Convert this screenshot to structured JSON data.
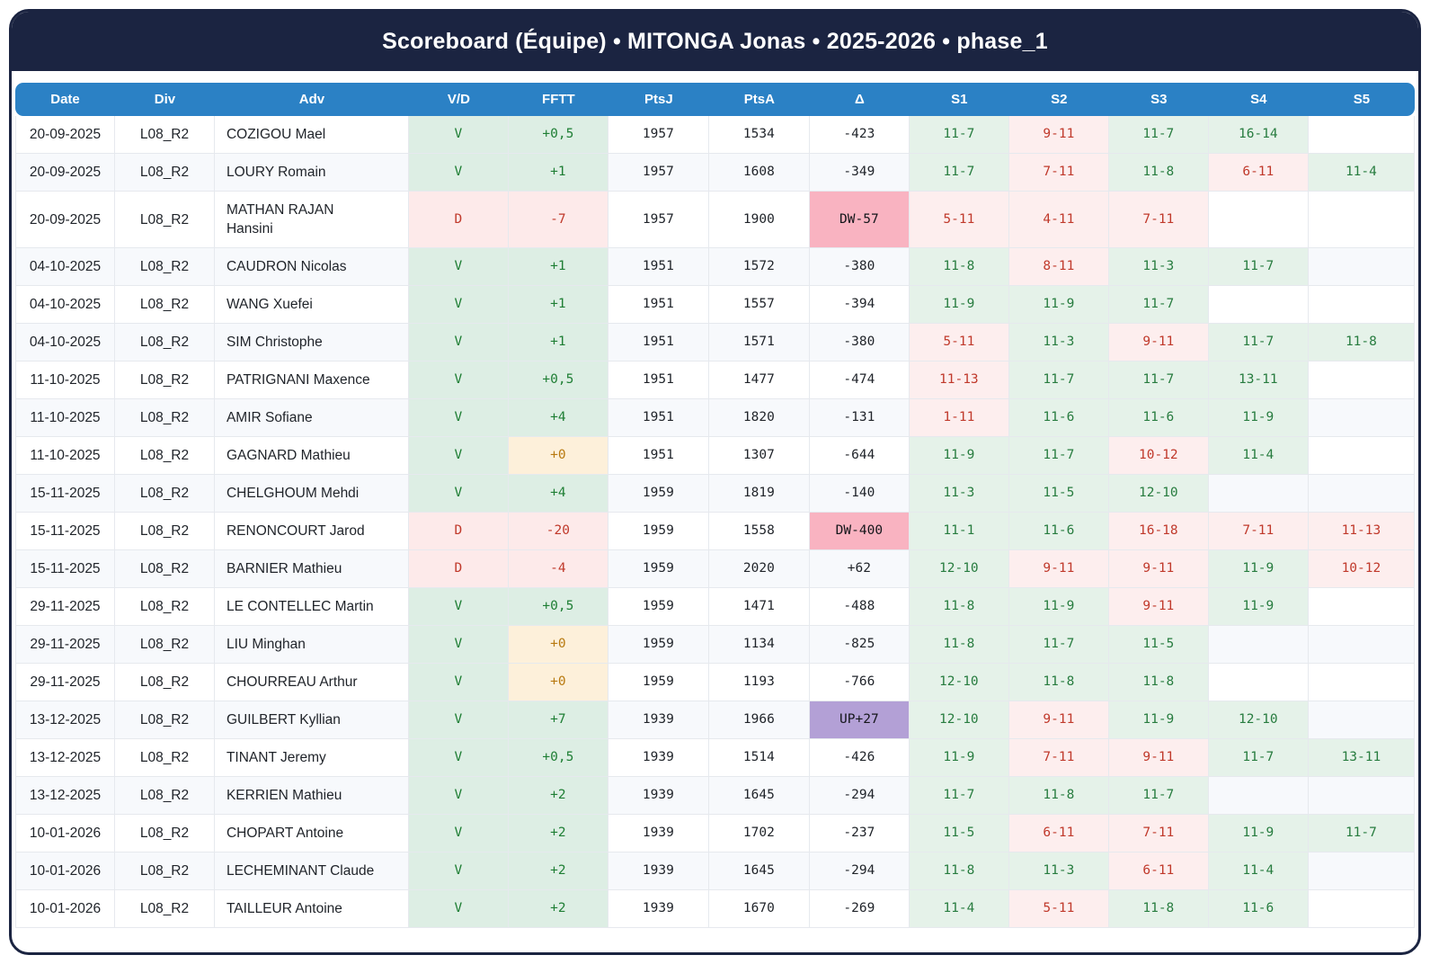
{
  "title": "Scoreboard (Équipe) • MITONGA Jonas • 2025-2026 • phase_1",
  "colors": {
    "frame_navy": "#1b2441",
    "header_blue": "#2b81c5",
    "win_bg": "#ddeee4",
    "win_text": "#1e7e34",
    "loss_bg": "#fdeaea",
    "loss_text": "#c0392b",
    "zero_bg": "#fdf0da",
    "zero_text": "#b8790f",
    "set_win_bg": "#e5f2e9",
    "set_win_text": "#277c3f",
    "set_loss_bg": "#fdeeee",
    "delta_down_bg": "#f9b3c1",
    "delta_up_bg": "#b3a0d6"
  },
  "table": {
    "columns": [
      "Date",
      "Div",
      "Adv",
      "V/D",
      "FFTT",
      "PtsJ",
      "PtsA",
      "Δ",
      "S1",
      "S2",
      "S3",
      "S4",
      "S5"
    ],
    "rows": [
      {
        "date": "20-09-2025",
        "div": "L08_R2",
        "adv": "COZIGOU Mael",
        "vd": "V",
        "res": "win",
        "fftt": "+0,5",
        "fs": "win",
        "ptsj": "1957",
        "ptsa": "1534",
        "delta": "-423",
        "ds": "normal",
        "sets": [
          {
            "s": "11-7",
            "r": "w"
          },
          {
            "s": "9-11",
            "r": "l"
          },
          {
            "s": "11-7",
            "r": "w"
          },
          {
            "s": "16-14",
            "r": "w"
          },
          null
        ]
      },
      {
        "date": "20-09-2025",
        "div": "L08_R2",
        "adv": "LOURY Romain",
        "vd": "V",
        "res": "win",
        "fftt": "+1",
        "fs": "win",
        "ptsj": "1957",
        "ptsa": "1608",
        "delta": "-349",
        "ds": "normal",
        "sets": [
          {
            "s": "11-7",
            "r": "w"
          },
          {
            "s": "7-11",
            "r": "l"
          },
          {
            "s": "11-8",
            "r": "w"
          },
          {
            "s": "6-11",
            "r": "l"
          },
          {
            "s": "11-4",
            "r": "w"
          }
        ]
      },
      {
        "date": "20-09-2025",
        "div": "L08_R2",
        "adv": "MATHAN RAJAN\nHansini",
        "vd": "D",
        "res": "loss",
        "fftt": "-7",
        "fs": "loss",
        "ptsj": "1957",
        "ptsa": "1900",
        "delta": "DW-57",
        "ds": "down",
        "sets": [
          {
            "s": "5-11",
            "r": "l"
          },
          {
            "s": "4-11",
            "r": "l"
          },
          {
            "s": "7-11",
            "r": "l"
          },
          null,
          null
        ]
      },
      {
        "date": "04-10-2025",
        "div": "L08_R2",
        "adv": "CAUDRON Nicolas",
        "vd": "V",
        "res": "win",
        "fftt": "+1",
        "fs": "win",
        "ptsj": "1951",
        "ptsa": "1572",
        "delta": "-380",
        "ds": "normal",
        "sets": [
          {
            "s": "11-8",
            "r": "w"
          },
          {
            "s": "8-11",
            "r": "l"
          },
          {
            "s": "11-3",
            "r": "w"
          },
          {
            "s": "11-7",
            "r": "w"
          },
          null
        ]
      },
      {
        "date": "04-10-2025",
        "div": "L08_R2",
        "adv": "WANG Xuefei",
        "vd": "V",
        "res": "win",
        "fftt": "+1",
        "fs": "win",
        "ptsj": "1951",
        "ptsa": "1557",
        "delta": "-394",
        "ds": "normal",
        "sets": [
          {
            "s": "11-9",
            "r": "w"
          },
          {
            "s": "11-9",
            "r": "w"
          },
          {
            "s": "11-7",
            "r": "w"
          },
          null,
          null
        ]
      },
      {
        "date": "04-10-2025",
        "div": "L08_R2",
        "adv": "SIM Christophe",
        "vd": "V",
        "res": "win",
        "fftt": "+1",
        "fs": "win",
        "ptsj": "1951",
        "ptsa": "1571",
        "delta": "-380",
        "ds": "normal",
        "sets": [
          {
            "s": "5-11",
            "r": "l"
          },
          {
            "s": "11-3",
            "r": "w"
          },
          {
            "s": "9-11",
            "r": "l"
          },
          {
            "s": "11-7",
            "r": "w"
          },
          {
            "s": "11-8",
            "r": "w"
          }
        ]
      },
      {
        "date": "11-10-2025",
        "div": "L08_R2",
        "adv": "PATRIGNANI Maxence",
        "vd": "V",
        "res": "win",
        "fftt": "+0,5",
        "fs": "win",
        "ptsj": "1951",
        "ptsa": "1477",
        "delta": "-474",
        "ds": "normal",
        "sets": [
          {
            "s": "11-13",
            "r": "l"
          },
          {
            "s": "11-7",
            "r": "w"
          },
          {
            "s": "11-7",
            "r": "w"
          },
          {
            "s": "13-11",
            "r": "w"
          },
          null
        ]
      },
      {
        "date": "11-10-2025",
        "div": "L08_R2",
        "adv": "AMIR Sofiane",
        "vd": "V",
        "res": "win",
        "fftt": "+4",
        "fs": "win",
        "ptsj": "1951",
        "ptsa": "1820",
        "delta": "-131",
        "ds": "normal",
        "sets": [
          {
            "s": "1-11",
            "r": "l"
          },
          {
            "s": "11-6",
            "r": "w"
          },
          {
            "s": "11-6",
            "r": "w"
          },
          {
            "s": "11-9",
            "r": "w"
          },
          null
        ]
      },
      {
        "date": "11-10-2025",
        "div": "L08_R2",
        "adv": "GAGNARD Mathieu",
        "vd": "V",
        "res": "win",
        "fftt": "+0",
        "fs": "zero",
        "ptsj": "1951",
        "ptsa": "1307",
        "delta": "-644",
        "ds": "normal",
        "sets": [
          {
            "s": "11-9",
            "r": "w"
          },
          {
            "s": "11-7",
            "r": "w"
          },
          {
            "s": "10-12",
            "r": "l"
          },
          {
            "s": "11-4",
            "r": "w"
          },
          null
        ]
      },
      {
        "date": "15-11-2025",
        "div": "L08_R2",
        "adv": "CHELGHOUM Mehdi",
        "vd": "V",
        "res": "win",
        "fftt": "+4",
        "fs": "win",
        "ptsj": "1959",
        "ptsa": "1819",
        "delta": "-140",
        "ds": "normal",
        "sets": [
          {
            "s": "11-3",
            "r": "w"
          },
          {
            "s": "11-5",
            "r": "w"
          },
          {
            "s": "12-10",
            "r": "w"
          },
          null,
          null
        ]
      },
      {
        "date": "15-11-2025",
        "div": "L08_R2",
        "adv": "RENONCOURT Jarod",
        "vd": "D",
        "res": "loss",
        "fftt": "-20",
        "fs": "loss",
        "ptsj": "1959",
        "ptsa": "1558",
        "delta": "DW-400",
        "ds": "down",
        "sets": [
          {
            "s": "11-1",
            "r": "w"
          },
          {
            "s": "11-6",
            "r": "w"
          },
          {
            "s": "16-18",
            "r": "l"
          },
          {
            "s": "7-11",
            "r": "l"
          },
          {
            "s": "11-13",
            "r": "l"
          }
        ]
      },
      {
        "date": "15-11-2025",
        "div": "L08_R2",
        "adv": "BARNIER Mathieu",
        "vd": "D",
        "res": "loss",
        "fftt": "-4",
        "fs": "loss",
        "ptsj": "1959",
        "ptsa": "2020",
        "delta": "+62",
        "ds": "normal",
        "sets": [
          {
            "s": "12-10",
            "r": "w"
          },
          {
            "s": "9-11",
            "r": "l"
          },
          {
            "s": "9-11",
            "r": "l"
          },
          {
            "s": "11-9",
            "r": "w"
          },
          {
            "s": "10-12",
            "r": "l"
          }
        ]
      },
      {
        "date": "29-11-2025",
        "div": "L08_R2",
        "adv": "LE CONTELLEC Martin",
        "vd": "V",
        "res": "win",
        "fftt": "+0,5",
        "fs": "win",
        "ptsj": "1959",
        "ptsa": "1471",
        "delta": "-488",
        "ds": "normal",
        "sets": [
          {
            "s": "11-8",
            "r": "w"
          },
          {
            "s": "11-9",
            "r": "w"
          },
          {
            "s": "9-11",
            "r": "l"
          },
          {
            "s": "11-9",
            "r": "w"
          },
          null
        ]
      },
      {
        "date": "29-11-2025",
        "div": "L08_R2",
        "adv": "LIU Minghan",
        "vd": "V",
        "res": "win",
        "fftt": "+0",
        "fs": "zero",
        "ptsj": "1959",
        "ptsa": "1134",
        "delta": "-825",
        "ds": "normal",
        "sets": [
          {
            "s": "11-8",
            "r": "w"
          },
          {
            "s": "11-7",
            "r": "w"
          },
          {
            "s": "11-5",
            "r": "w"
          },
          null,
          null
        ]
      },
      {
        "date": "29-11-2025",
        "div": "L08_R2",
        "adv": "CHOURREAU Arthur",
        "vd": "V",
        "res": "win",
        "fftt": "+0",
        "fs": "zero",
        "ptsj": "1959",
        "ptsa": "1193",
        "delta": "-766",
        "ds": "normal",
        "sets": [
          {
            "s": "12-10",
            "r": "w"
          },
          {
            "s": "11-8",
            "r": "w"
          },
          {
            "s": "11-8",
            "r": "w"
          },
          null,
          null
        ]
      },
      {
        "date": "13-12-2025",
        "div": "L08_R2",
        "adv": "GUILBERT Kyllian",
        "vd": "V",
        "res": "win",
        "fftt": "+7",
        "fs": "win",
        "ptsj": "1939",
        "ptsa": "1966",
        "delta": "UP+27",
        "ds": "up",
        "sets": [
          {
            "s": "12-10",
            "r": "w"
          },
          {
            "s": "9-11",
            "r": "l"
          },
          {
            "s": "11-9",
            "r": "w"
          },
          {
            "s": "12-10",
            "r": "w"
          },
          null
        ]
      },
      {
        "date": "13-12-2025",
        "div": "L08_R2",
        "adv": "TINANT Jeremy",
        "vd": "V",
        "res": "win",
        "fftt": "+0,5",
        "fs": "win",
        "ptsj": "1939",
        "ptsa": "1514",
        "delta": "-426",
        "ds": "normal",
        "sets": [
          {
            "s": "11-9",
            "r": "w"
          },
          {
            "s": "7-11",
            "r": "l"
          },
          {
            "s": "9-11",
            "r": "l"
          },
          {
            "s": "11-7",
            "r": "w"
          },
          {
            "s": "13-11",
            "r": "w"
          }
        ]
      },
      {
        "date": "13-12-2025",
        "div": "L08_R2",
        "adv": "KERRIEN Mathieu",
        "vd": "V",
        "res": "win",
        "fftt": "+2",
        "fs": "win",
        "ptsj": "1939",
        "ptsa": "1645",
        "delta": "-294",
        "ds": "normal",
        "sets": [
          {
            "s": "11-7",
            "r": "w"
          },
          {
            "s": "11-8",
            "r": "w"
          },
          {
            "s": "11-7",
            "r": "w"
          },
          null,
          null
        ]
      },
      {
        "date": "10-01-2026",
        "div": "L08_R2",
        "adv": "CHOPART Antoine",
        "vd": "V",
        "res": "win",
        "fftt": "+2",
        "fs": "win",
        "ptsj": "1939",
        "ptsa": "1702",
        "delta": "-237",
        "ds": "normal",
        "sets": [
          {
            "s": "11-5",
            "r": "w"
          },
          {
            "s": "6-11",
            "r": "l"
          },
          {
            "s": "7-11",
            "r": "l"
          },
          {
            "s": "11-9",
            "r": "w"
          },
          {
            "s": "11-7",
            "r": "w"
          }
        ]
      },
      {
        "date": "10-01-2026",
        "div": "L08_R2",
        "adv": "LECHEMINANT Claude",
        "vd": "V",
        "res": "win",
        "fftt": "+2",
        "fs": "win",
        "ptsj": "1939",
        "ptsa": "1645",
        "delta": "-294",
        "ds": "normal",
        "sets": [
          {
            "s": "11-8",
            "r": "w"
          },
          {
            "s": "11-3",
            "r": "w"
          },
          {
            "s": "6-11",
            "r": "l"
          },
          {
            "s": "11-4",
            "r": "w"
          },
          null
        ]
      },
      {
        "date": "10-01-2026",
        "div": "L08_R2",
        "adv": "TAILLEUR Antoine",
        "vd": "V",
        "res": "win",
        "fftt": "+2",
        "fs": "win",
        "ptsj": "1939",
        "ptsa": "1670",
        "delta": "-269",
        "ds": "normal",
        "sets": [
          {
            "s": "11-4",
            "r": "w"
          },
          {
            "s": "5-11",
            "r": "l"
          },
          {
            "s": "11-8",
            "r": "w"
          },
          {
            "s": "11-6",
            "r": "w"
          },
          null
        ]
      }
    ]
  }
}
